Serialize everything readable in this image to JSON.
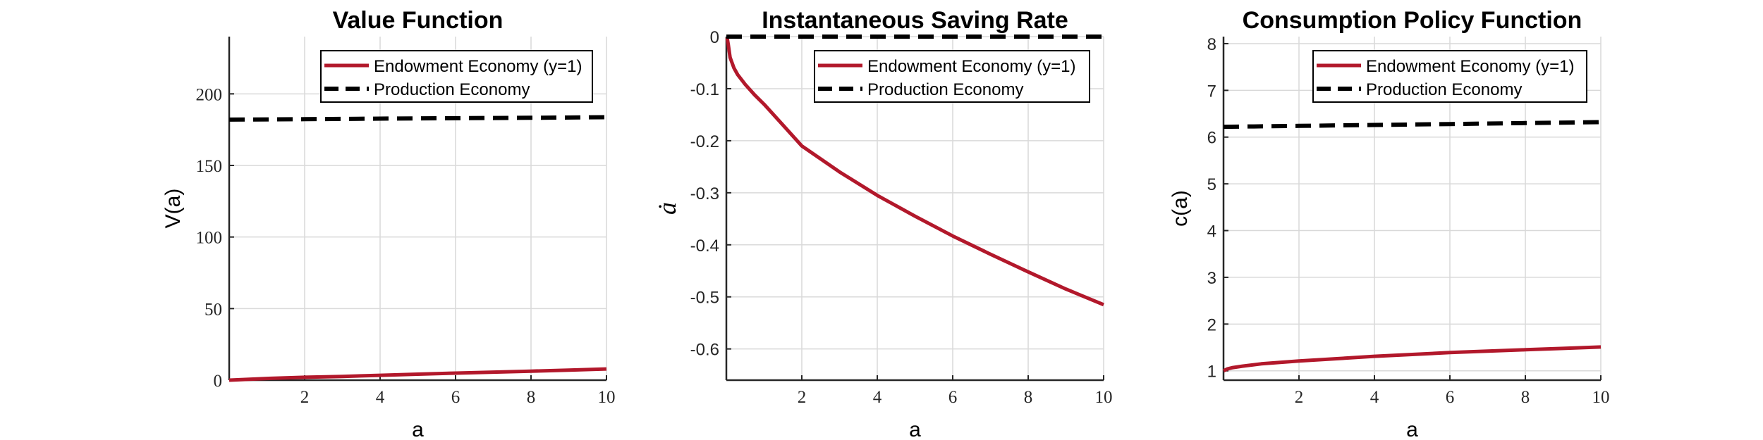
{
  "colors": {
    "endowment": "#b2182b",
    "production": "#000000",
    "grid": "#d9d9d9",
    "axis": "#262626"
  },
  "chart_data": [
    {
      "type": "line",
      "title": "Value Function",
      "xlabel": "a",
      "ylabel": "V(a)",
      "xlim": [
        0,
        10
      ],
      "ylim": [
        0,
        240
      ],
      "xticks": [
        2,
        4,
        6,
        8,
        10
      ],
      "yticks": [
        0,
        50,
        100,
        150,
        200
      ],
      "ytick_labels": [
        "0",
        "50",
        "100",
        "150",
        "200"
      ],
      "tick_font": "serif",
      "grid": true,
      "legend": "top-right",
      "series": [
        {
          "name": "Endowment Economy (y=1)",
          "style": "solid",
          "x": [
            0,
            1,
            2,
            3,
            4,
            5,
            6,
            7,
            8,
            9,
            10
          ],
          "y": [
            0,
            1.2,
            2.0,
            2.6,
            3.4,
            4.2,
            4.9,
            5.6,
            6.3,
            7.0,
            7.8
          ]
        },
        {
          "name": "Production Economy",
          "style": "dashed",
          "x": [
            0,
            2,
            4,
            6,
            8,
            10
          ],
          "y": [
            182,
            182.3,
            182.7,
            183.0,
            183.3,
            183.7
          ]
        }
      ]
    },
    {
      "type": "line",
      "title": "Instantaneous Saving Rate",
      "xlabel": "a",
      "ylabel": "ȧ",
      "xlim": [
        0,
        10
      ],
      "ylim": [
        -0.66,
        0
      ],
      "xticks": [
        2,
        4,
        6,
        8,
        10
      ],
      "yticks": [
        0,
        -0.1,
        -0.2,
        -0.3,
        -0.4,
        -0.5,
        -0.6
      ],
      "ytick_labels": [
        "0",
        "-0.1",
        "-0.2",
        "-0.3",
        "-0.4",
        "-0.5",
        "-0.6"
      ],
      "tick_font": "sans",
      "grid": true,
      "legend": "top-right",
      "series": [
        {
          "name": "Endowment Economy (y=1)",
          "style": "solid",
          "x": [
            0.02,
            0.05,
            0.1,
            0.2,
            0.3,
            0.5,
            0.75,
            1,
            1.5,
            2,
            3,
            4,
            5,
            6,
            7,
            8,
            9,
            10
          ],
          "y": [
            -0.002,
            -0.015,
            -0.04,
            -0.06,
            -0.073,
            -0.092,
            -0.112,
            -0.13,
            -0.17,
            -0.21,
            -0.26,
            -0.305,
            -0.345,
            -0.383,
            -0.418,
            -0.452,
            -0.485,
            -0.515
          ]
        },
        {
          "name": "Production Economy",
          "style": "dashed",
          "x": [
            0,
            10
          ],
          "y": [
            0,
            0
          ]
        }
      ]
    },
    {
      "type": "line",
      "title": "Consumption Policy Function",
      "xlabel": "a",
      "ylabel": "c(a)",
      "xlim": [
        0,
        10
      ],
      "ylim": [
        0.8,
        8.15
      ],
      "xticks": [
        2,
        4,
        6,
        8,
        10
      ],
      "yticks": [
        1,
        2,
        3,
        4,
        5,
        6,
        7,
        8
      ],
      "ytick_labels": [
        "1",
        "2",
        "3",
        "4",
        "5",
        "6",
        "7",
        "8"
      ],
      "tick_font": "sans",
      "grid": true,
      "legend": "top-right",
      "series": [
        {
          "name": "Endowment Economy (y=1)",
          "style": "solid",
          "x": [
            0,
            0.1,
            0.25,
            0.5,
            1,
            2,
            3,
            4,
            5,
            6,
            7,
            8,
            9,
            10
          ],
          "y": [
            1.0,
            1.04,
            1.07,
            1.1,
            1.15,
            1.21,
            1.26,
            1.31,
            1.35,
            1.39,
            1.42,
            1.45,
            1.48,
            1.51
          ]
        },
        {
          "name": "Production Economy",
          "style": "dashed",
          "x": [
            0,
            2,
            4,
            6,
            8,
            10
          ],
          "y": [
            6.22,
            6.24,
            6.26,
            6.28,
            6.3,
            6.32
          ]
        }
      ]
    }
  ]
}
